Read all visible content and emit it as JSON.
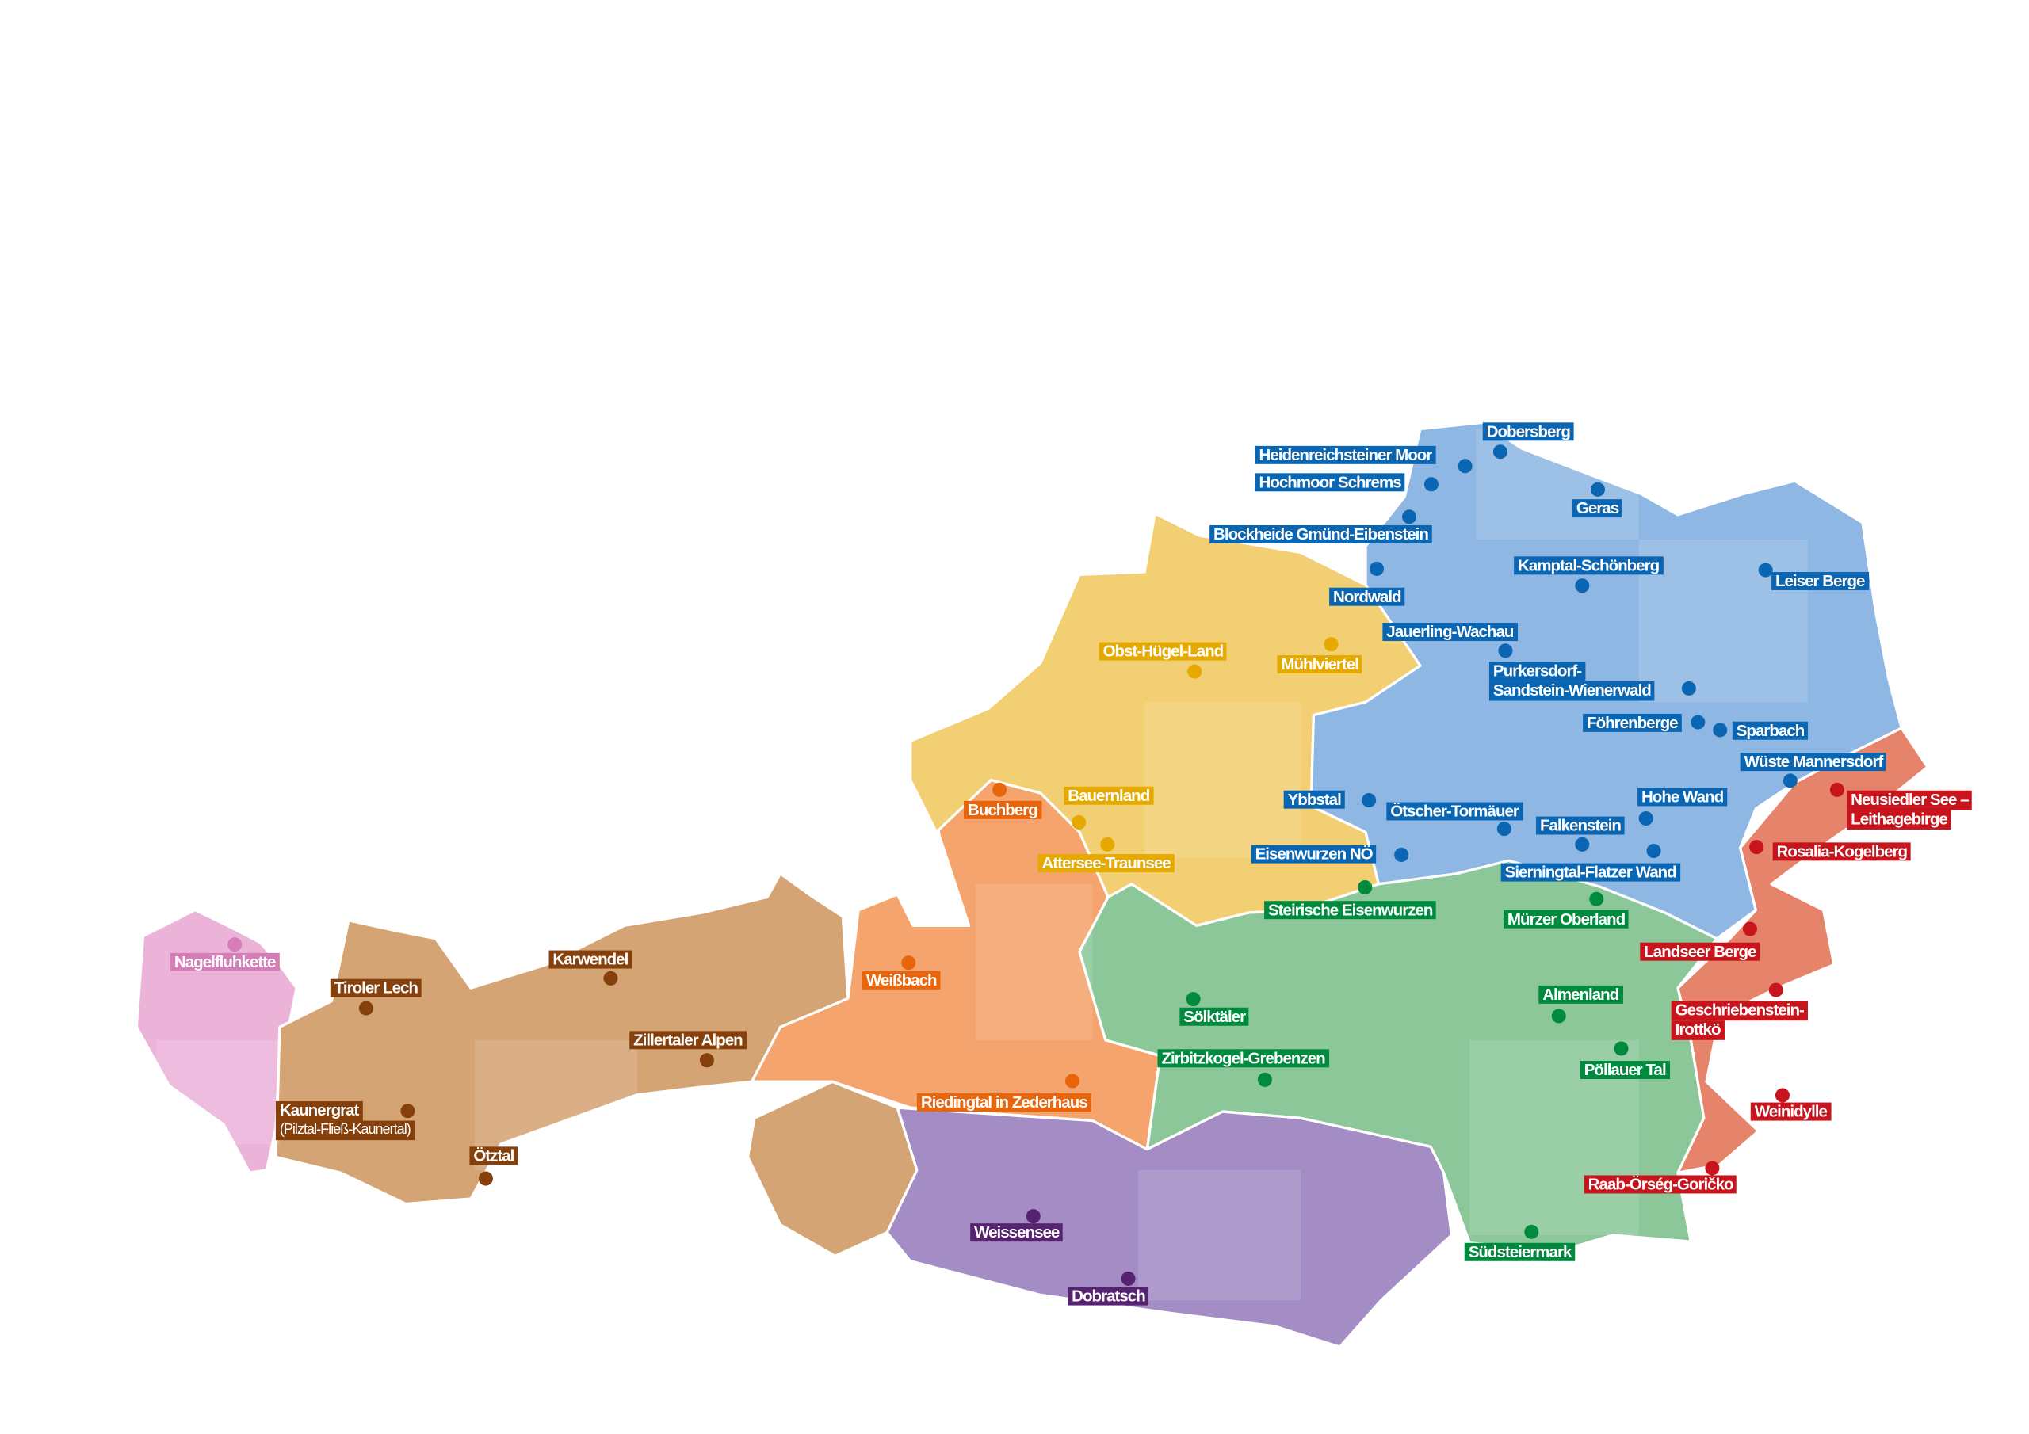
{
  "colors": {
    "blue": {
      "label": "#0a66b2",
      "area": "#8fb7e4"
    },
    "yellow": {
      "label": "#e5a900",
      "area": "#f2cf72"
    },
    "orange": {
      "label": "#e8650c",
      "area": "#f4a46c"
    },
    "brown": {
      "label": "#86400c",
      "area": "#d5a474"
    },
    "pink": {
      "label": "#d57db6",
      "area": "#ecb3d9"
    },
    "green": {
      "label": "#008a3e",
      "area": "#8cc79a"
    },
    "purple": {
      "label": "#55236f",
      "area": "#a48cc5"
    },
    "red": {
      "label": "#c8141c",
      "area": "#e6846b"
    }
  },
  "areas": [
    {
      "name": "Dobersberg",
      "group": "blue"
    },
    {
      "name": "Heidenreichsteiner Moor",
      "group": "blue"
    },
    {
      "name": "Hochmoor Schrems",
      "group": "blue"
    },
    {
      "name": "Geras",
      "group": "blue"
    },
    {
      "name": "Blockheide Gmünd-Eibenstein",
      "group": "blue"
    },
    {
      "name": "Nordwald",
      "group": "blue"
    },
    {
      "name": "Kamptal-Schönberg",
      "group": "blue"
    },
    {
      "name": "Leiser Berge",
      "group": "blue"
    },
    {
      "name": "Jauerling-Wachau",
      "group": "blue"
    },
    {
      "name": "Purkersdorf-",
      "sub": "Sandstein-Wienerwald",
      "group": "blue"
    },
    {
      "name": "Föhrenberge",
      "group": "blue"
    },
    {
      "name": "Sparbach",
      "group": "blue"
    },
    {
      "name": "Wüste Mannersdorf",
      "group": "blue"
    },
    {
      "name": "Ybbstal",
      "group": "blue"
    },
    {
      "name": "Ötscher-Tormäuer",
      "group": "blue"
    },
    {
      "name": "Hohe Wand",
      "group": "blue"
    },
    {
      "name": "Falkenstein",
      "group": "blue"
    },
    {
      "name": "Eisenwurzen NÖ",
      "group": "blue"
    },
    {
      "name": "Sierningtal-Flatzer Wand",
      "group": "blue"
    },
    {
      "name": "Mühlviertel",
      "group": "yellow"
    },
    {
      "name": "Obst-Hügel-Land",
      "group": "yellow"
    },
    {
      "name": "Bauernland",
      "group": "yellow"
    },
    {
      "name": "Attersee-Traunsee",
      "group": "yellow"
    },
    {
      "name": "Buchberg",
      "group": "orange"
    },
    {
      "name": "Weißbach",
      "group": "orange"
    },
    {
      "name": "Riedingtal in Zederhaus",
      "group": "orange"
    },
    {
      "name": "Neusiedler See –",
      "sub": "Leithagebirge",
      "group": "red"
    },
    {
      "name": "Rosalia-Kogelberg",
      "group": "red"
    },
    {
      "name": "Landseer Berge",
      "group": "red"
    },
    {
      "name": "Geschriebenstein-",
      "sub": "Irottkö",
      "group": "red"
    },
    {
      "name": "Weinidylle",
      "group": "red"
    },
    {
      "name": "Raab-Örség-Goričko",
      "group": "red"
    },
    {
      "name": "Steirische Eisenwurzen",
      "group": "green"
    },
    {
      "name": "Mürzer Oberland",
      "group": "green"
    },
    {
      "name": "Almenland",
      "group": "green"
    },
    {
      "name": "Sölktäler",
      "group": "green"
    },
    {
      "name": "Pöllauer Tal",
      "group": "green"
    },
    {
      "name": "Zirbitzkogel-Grebenzen",
      "group": "green"
    },
    {
      "name": "Südsteiermark",
      "group": "green"
    },
    {
      "name": "Weissensee",
      "group": "purple"
    },
    {
      "name": "Dobratsch",
      "group": "purple"
    },
    {
      "name": "Nagelfluhkette",
      "group": "pink"
    },
    {
      "name": "Tiroler Lech",
      "group": "brown"
    },
    {
      "name": "Karwendel",
      "group": "brown"
    },
    {
      "name": "Zillertaler Alpen",
      "group": "brown"
    },
    {
      "name": "Kaunergrat",
      "sub": "(Pilztal-Fließ-Kaunertal)",
      "group": "brown"
    },
    {
      "name": "Ötztal",
      "group": "brown"
    }
  ]
}
